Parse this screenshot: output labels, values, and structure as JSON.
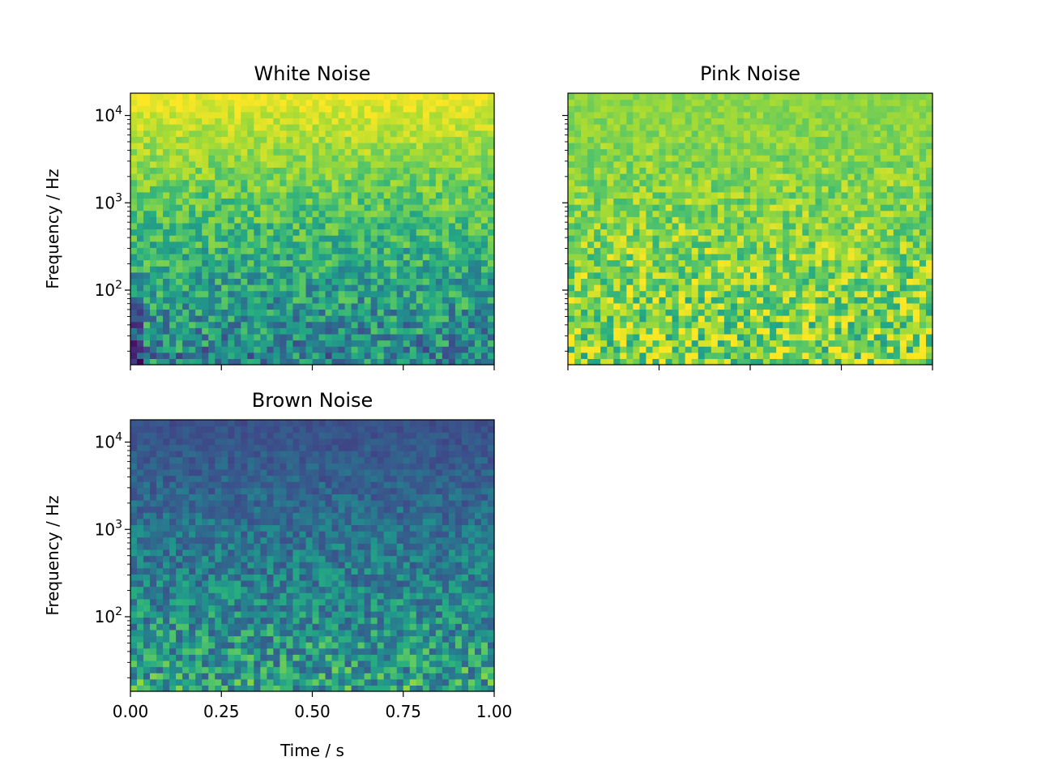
{
  "chart_data": [
    {
      "type": "heatmap",
      "title": "White Noise",
      "xlabel": "",
      "ylabel": "Frequency / Hz",
      "x_range": [
        0,
        1
      ],
      "y_range": [
        14,
        18000
      ],
      "y_scale": "log",
      "y_ticks": [
        {
          "base": "10",
          "exp": "4"
        },
        {
          "base": "10",
          "exp": "3"
        },
        {
          "base": "10",
          "exp": "2"
        }
      ],
      "x_ticks": [],
      "colormap": "viridis",
      "grid": false,
      "spectral_slope": 0
    },
    {
      "type": "heatmap",
      "title": "Pink Noise",
      "xlabel": "",
      "ylabel": "",
      "x_range": [
        0,
        1
      ],
      "y_range": [
        14,
        18000
      ],
      "y_scale": "log",
      "y_ticks": [],
      "x_ticks": [],
      "colormap": "viridis",
      "grid": false,
      "spectral_slope": -1
    },
    {
      "type": "heatmap",
      "title": "Brown Noise",
      "xlabel": "Time / s",
      "ylabel": "Frequency / Hz",
      "x_range": [
        0,
        1
      ],
      "y_range": [
        14,
        18000
      ],
      "y_scale": "log",
      "y_ticks": [
        {
          "base": "10",
          "exp": "4"
        },
        {
          "base": "10",
          "exp": "3"
        },
        {
          "base": "10",
          "exp": "2"
        }
      ],
      "x_ticks": [
        "0.00",
        "0.25",
        "0.50",
        "0.75",
        "1.00"
      ],
      "colormap": "viridis",
      "grid": false,
      "spectral_slope": -2
    }
  ]
}
